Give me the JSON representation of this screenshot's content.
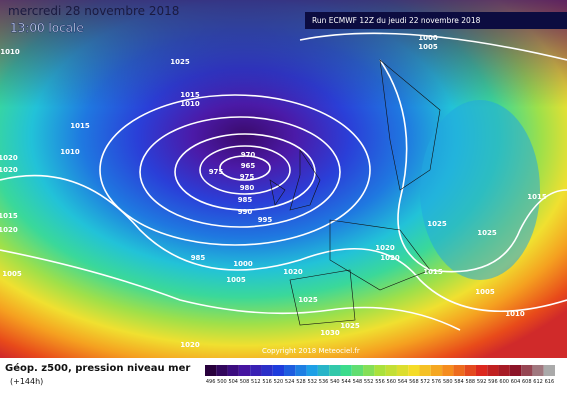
{
  "header": {
    "date": "mercredi 28 novembre 2018",
    "time": "13:00 locale",
    "run": "Run ECMWF 12Z du jeudi 22 novembre 2018"
  },
  "copyright": "Copyright 2018 Meteociel.fr",
  "legend": {
    "title": "Géop. z500, pression niveau mer",
    "lead": "(+144h)",
    "scale": [
      "496",
      "500",
      "504",
      "508",
      "512",
      "516",
      "520",
      "524",
      "528",
      "532",
      "536",
      "540",
      "544",
      "548",
      "552",
      "556",
      "560",
      "564",
      "568",
      "572",
      "576",
      "580",
      "584",
      "588",
      "592",
      "596",
      "600",
      "604",
      "608",
      "612",
      "616"
    ]
  },
  "isobar_labels": [
    "1000",
    "1005",
    "1010",
    "1025",
    "1015",
    "1010",
    "1015",
    "1010",
    "1020",
    "1020",
    "970",
    "965",
    "975",
    "975",
    "980",
    "985",
    "990",
    "995",
    "985",
    "1000",
    "1005",
    "1020",
    "1025",
    "1020",
    "1025",
    "1030",
    "1015",
    "1020",
    "1005",
    "1025",
    "1025",
    "1020",
    "1020",
    "1015",
    "1015",
    "1005",
    "1010"
  ]
}
